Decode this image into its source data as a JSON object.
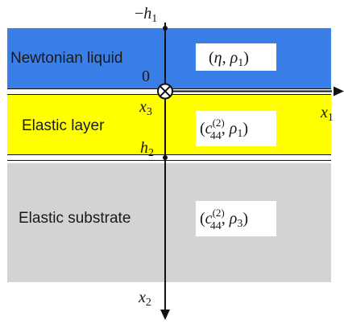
{
  "diagram": {
    "colors": {
      "liquid": "#3a7fe8",
      "elastic_layer": "#ffff00",
      "substrate": "#d3d3d3",
      "line": "#111111"
    },
    "layers": {
      "liquid": {
        "name": "Newtonian liquid",
        "params_a": "η",
        "params_b": "ρ",
        "params_b_sub": "1"
      },
      "elastic_layer": {
        "name": "Elastic layer",
        "c": "c",
        "c_sub": "44",
        "c_sup": "(2)",
        "rho": "ρ",
        "rho_sub": "1"
      },
      "substrate": {
        "name": "Elastic substrate",
        "c": "c",
        "c_sub": "44",
        "c_sup": "(2)",
        "rho": "ρ",
        "rho_sub": "3"
      }
    },
    "labels": {
      "minus_h1_prefix": "−",
      "h1": "h",
      "h1_sub": "1",
      "zero": "0",
      "x3": "x",
      "x3_sub": "3",
      "h2": "h",
      "h2_sub": "2",
      "x1": "x",
      "x1_sub": "1",
      "x2": "x",
      "x2_sub": "2"
    }
  }
}
